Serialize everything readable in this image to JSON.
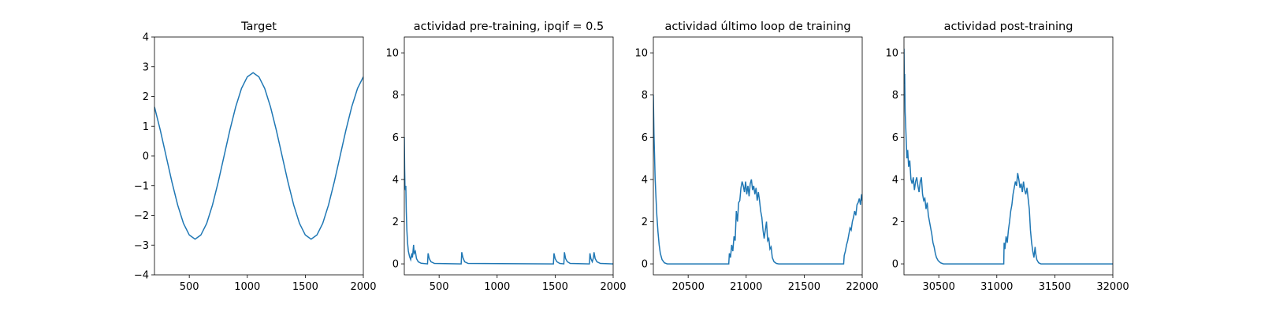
{
  "chart_data": [
    {
      "type": "line",
      "title": "Target",
      "color": "#1f77b4",
      "x": [
        200,
        250,
        300,
        350,
        400,
        450,
        500,
        550,
        600,
        650,
        700,
        750,
        800,
        850,
        900,
        950,
        1000,
        1050,
        1100,
        1150,
        1200,
        1250,
        1300,
        1350,
        1400,
        1450,
        1500,
        1550,
        1600,
        1650,
        1700,
        1750,
        1800,
        1850,
        1900,
        1950,
        2000
      ],
      "values": [
        1.65,
        0.87,
        0,
        -0.87,
        -1.65,
        -2.27,
        -2.66,
        -2.8,
        -2.66,
        -2.27,
        -1.65,
        -0.87,
        0,
        0.87,
        1.65,
        2.27,
        2.66,
        2.8,
        2.66,
        2.27,
        1.65,
        0.87,
        0,
        -0.87,
        -1.65,
        -2.27,
        -2.66,
        -2.8,
        -2.66,
        -2.27,
        -1.65,
        -0.87,
        0,
        0.87,
        1.65,
        2.27,
        2.66
      ],
      "xlim": [
        200,
        2000
      ],
      "xticks": [
        500,
        1000,
        1500,
        2000
      ],
      "ylim": [
        -4,
        4
      ],
      "yticks": [
        {
          "value": -4,
          "label": "−4"
        },
        {
          "value": -3,
          "label": "−3"
        },
        {
          "value": -2,
          "label": "−2"
        },
        {
          "value": -1,
          "label": "−1"
        },
        0,
        1,
        2,
        3,
        4
      ]
    },
    {
      "type": "line",
      "title": "actividad pre-training, ipqif = 0.5",
      "color": "#1f77b4",
      "x": [
        200,
        203,
        206,
        210,
        213,
        217,
        222,
        228,
        235,
        245,
        255,
        265,
        270,
        280,
        285,
        295,
        305,
        320,
        345,
        400,
        405,
        415,
        430,
        460,
        690,
        695,
        705,
        720,
        750,
        1485,
        1490,
        1500,
        1515,
        1540,
        1575,
        1580,
        1590,
        1605,
        1630,
        1795,
        1800,
        1808,
        1820,
        1830,
        1835,
        1845,
        1860,
        1890,
        2000
      ],
      "values": [
        6.0,
        4.5,
        3.6,
        3.5,
        3.7,
        2.5,
        1.6,
        1.0,
        0.6,
        0.35,
        0.2,
        0.5,
        0.3,
        0.9,
        0.5,
        0.6,
        0.25,
        0.1,
        0.03,
        0.0,
        0.5,
        0.25,
        0.1,
        0.02,
        0.0,
        0.55,
        0.3,
        0.1,
        0.02,
        0.0,
        0.5,
        0.25,
        0.1,
        0.02,
        0.0,
        0.55,
        0.25,
        0.1,
        0.02,
        0.0,
        0.5,
        0.25,
        0.1,
        0.3,
        0.55,
        0.25,
        0.1,
        0.02,
        0.0
      ],
      "xlim": [
        200,
        2000
      ],
      "xticks": [
        500,
        1000,
        1500,
        2000
      ],
      "ylim": [
        -0.52,
        10.75
      ],
      "yticks": [
        0,
        2,
        4,
        6,
        8,
        10
      ]
    },
    {
      "type": "line",
      "title": "actividad último loop de training",
      "color": "#1f77b4",
      "x": [
        20200,
        20205,
        20210,
        20215,
        20222,
        20230,
        20240,
        20250,
        20260,
        20275,
        20295,
        20320,
        20850,
        20855,
        20865,
        20875,
        20885,
        20895,
        20905,
        20915,
        20925,
        20935,
        20945,
        20955,
        20965,
        20975,
        20985,
        20995,
        21005,
        21015,
        21025,
        21035,
        21045,
        21055,
        21065,
        21075,
        21085,
        21095,
        21105,
        21115,
        21125,
        21135,
        21145,
        21155,
        21165,
        21175,
        21185,
        21195,
        21205,
        21215,
        21225,
        21240,
        21260,
        21280,
        21840,
        21845,
        21855,
        21865,
        21875,
        21885,
        21895,
        21905,
        21915,
        21925,
        21935,
        21945,
        21955,
        21965,
        21975,
        21985,
        21995,
        22000
      ],
      "values": [
        8.0,
        6.2,
        5.2,
        4.1,
        3.2,
        2.3,
        1.5,
        0.9,
        0.5,
        0.2,
        0.05,
        0.0,
        0.0,
        0.5,
        0.3,
        0.9,
        0.6,
        1.3,
        1.1,
        2.5,
        2.0,
        2.9,
        3.0,
        3.6,
        3.9,
        3.7,
        3.4,
        3.9,
        3.3,
        3.7,
        3.2,
        3.8,
        4.0,
        3.5,
        3.7,
        3.3,
        3.6,
        3.0,
        3.4,
        3.0,
        2.5,
        2.2,
        1.6,
        1.2,
        1.6,
        2.0,
        1.1,
        1.2,
        0.7,
        0.8,
        0.3,
        0.1,
        0.02,
        0.0,
        0.0,
        0.4,
        0.6,
        0.9,
        1.1,
        1.4,
        1.7,
        1.6,
        2.0,
        2.2,
        2.5,
        2.3,
        2.8,
        2.9,
        3.1,
        2.8,
        3.3,
        3.0
      ],
      "xlim": [
        20200,
        22000
      ],
      "xticks": [
        20500,
        21000,
        21500,
        22000
      ],
      "ylim": [
        -0.52,
        10.75
      ],
      "yticks": [
        0,
        2,
        4,
        6,
        8,
        10
      ]
    },
    {
      "type": "line",
      "title": "actividad post-training",
      "color": "#1f77b4",
      "x": [
        30200,
        30203,
        30206,
        30210,
        30215,
        30220,
        30225,
        30232,
        30240,
        30250,
        30260,
        30270,
        30280,
        30290,
        30300,
        30310,
        30320,
        30330,
        30340,
        30350,
        30360,
        30370,
        30380,
        30390,
        30400,
        30410,
        30420,
        30430,
        30440,
        30450,
        30460,
        30470,
        30480,
        30495,
        30515,
        30540,
        31060,
        31063,
        31070,
        31080,
        31090,
        31100,
        31110,
        31120,
        31130,
        31140,
        31150,
        31160,
        31170,
        31180,
        31190,
        31200,
        31210,
        31220,
        31230,
        31240,
        31250,
        31260,
        31270,
        31280,
        31290,
        31300,
        31310,
        31320,
        31330,
        31335,
        31345,
        31360,
        31380,
        32000
      ],
      "values": [
        10.2,
        8.5,
        9.0,
        7.2,
        6.5,
        5.8,
        5.0,
        5.4,
        4.6,
        4.9,
        4.0,
        3.8,
        4.1,
        3.5,
        3.9,
        4.1,
        3.7,
        3.4,
        3.9,
        4.1,
        3.3,
        3.0,
        3.1,
        2.6,
        2.9,
        2.3,
        2.0,
        1.7,
        1.4,
        1.0,
        0.8,
        0.5,
        0.3,
        0.15,
        0.05,
        0.0,
        0.0,
        1.0,
        0.7,
        1.3,
        1.0,
        1.6,
        2.0,
        2.5,
        2.8,
        3.3,
        3.6,
        3.9,
        3.7,
        4.3,
        4.0,
        3.6,
        3.8,
        3.4,
        3.9,
        3.5,
        3.3,
        3.6,
        3.1,
        2.6,
        1.6,
        1.0,
        0.6,
        0.3,
        0.8,
        0.5,
        0.2,
        0.05,
        0.0,
        0.0
      ],
      "xlim": [
        30200,
        32000
      ],
      "xticks": [
        30500,
        31000,
        31500,
        32000
      ],
      "ylim": [
        -0.52,
        10.75
      ],
      "yticks": [
        0,
        2,
        4,
        6,
        8,
        10
      ]
    }
  ]
}
